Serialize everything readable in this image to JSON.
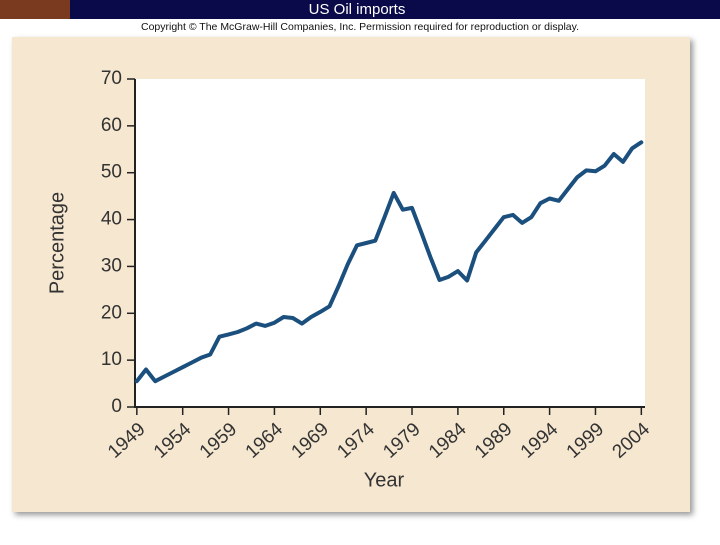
{
  "chart_data": {
    "type": "line",
    "title": "US Oil imports",
    "subtitle": "Copyright © The McGraw-Hill Companies, Inc. Permission required for reproduction or display.",
    "x_label": "Year",
    "y_label": "Percentage",
    "x": [
      1949,
      1950,
      1951,
      1952,
      1953,
      1954,
      1955,
      1956,
      1957,
      1958,
      1959,
      1960,
      1961,
      1962,
      1963,
      1964,
      1965,
      1966,
      1967,
      1968,
      1969,
      1970,
      1971,
      1972,
      1973,
      1974,
      1975,
      1976,
      1977,
      1978,
      1979,
      1980,
      1981,
      1982,
      1983,
      1984,
      1985,
      1986,
      1987,
      1988,
      1989,
      1990,
      1991,
      1992,
      1993,
      1994,
      1995,
      1996,
      1997,
      1998,
      1999,
      2000,
      2001,
      2002,
      2003,
      2004
    ],
    "series": [
      {
        "name": "Oil imports",
        "color": "#1b4f7d",
        "values": [
          5.5,
          8,
          5.5,
          6.5,
          7.5,
          8.5,
          9.5,
          10.5,
          11.2,
          15,
          15.5,
          16,
          16.8,
          17.8,
          17.3,
          18,
          19.2,
          19,
          17.8,
          19.2,
          20.3,
          21.5,
          25.8,
          30.5,
          34.5,
          35,
          35.5,
          40.5,
          45.7,
          42.1,
          42.5,
          37.3,
          32,
          27.1,
          27.8,
          29,
          27,
          33,
          35.5,
          38,
          40.5,
          41,
          39.3,
          40.5,
          43.5,
          44.5,
          44,
          46.5,
          49,
          50.5,
          50.3,
          51.5,
          54,
          52.3,
          55.2,
          56.5
        ]
      }
    ],
    "xlim": [
      1948.8,
      2004.4
    ],
    "xticks": [
      1949,
      1954,
      1959,
      1964,
      1969,
      1974,
      1979,
      1984,
      1989,
      1994,
      1999,
      2004
    ],
    "ylim": [
      0,
      70
    ],
    "yticks": [
      0,
      10,
      20,
      30,
      40,
      50,
      60,
      70
    ]
  }
}
